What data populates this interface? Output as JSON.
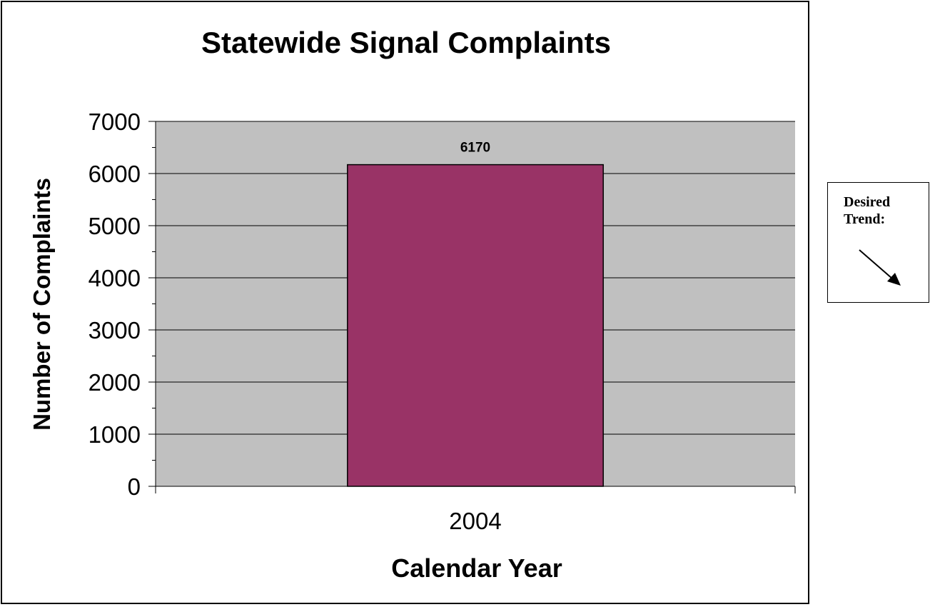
{
  "colors": {
    "plot_background": "#c0c0c0",
    "bar_fill": "#993366",
    "gridline": "#000000",
    "axis": "#000000"
  },
  "trend_panel": {
    "label": "Desired\nTrend:",
    "arrow_icon": "down-right-arrow-icon"
  },
  "chart_data": {
    "type": "bar",
    "title": "Statewide Signal Complaints",
    "xlabel": "Calendar Year",
    "ylabel": "Number of Complaints",
    "categories": [
      "2004"
    ],
    "values": [
      6170
    ],
    "data_labels": [
      "6170"
    ],
    "ylim": [
      0,
      7000
    ],
    "y_ticks": [
      0,
      1000,
      2000,
      3000,
      4000,
      5000,
      6000,
      7000
    ],
    "grid": true,
    "legend": "none"
  }
}
